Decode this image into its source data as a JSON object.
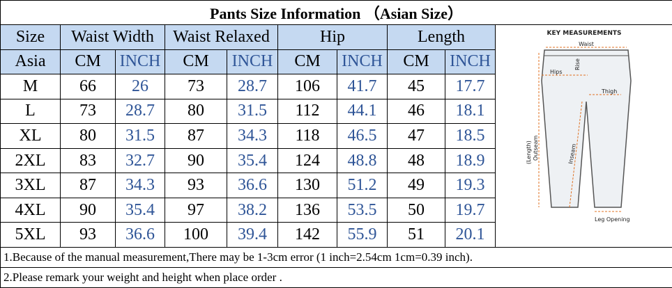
{
  "title": "Pants Size Information （Asian Size）",
  "header": {
    "size": "Size",
    "groups": [
      "Waist Width",
      "Waist Relaxed",
      "Hip",
      "Length"
    ],
    "region": "Asia",
    "cm": "CM",
    "inch": "INCH"
  },
  "table": {
    "rows": [
      [
        "M",
        66,
        26,
        73,
        28.7,
        106,
        41.7,
        45,
        17.7
      ],
      [
        "L",
        73,
        28.7,
        80,
        31.5,
        112,
        44.1,
        46,
        18.1
      ],
      [
        "XL",
        80,
        31.5,
        87,
        34.3,
        118,
        46.5,
        47,
        18.5
      ],
      [
        "2XL",
        83,
        32.7,
        90,
        35.4,
        124,
        48.8,
        48,
        18.9
      ],
      [
        "3XL",
        87,
        34.3,
        93,
        36.6,
        130,
        51.2,
        49,
        19.3
      ],
      [
        "4XL",
        90,
        35.4,
        97,
        38.2,
        136,
        53.5,
        50,
        19.7
      ],
      [
        "5XL",
        93,
        36.6,
        100,
        39.4,
        142,
        55.9,
        51,
        20.1
      ]
    ]
  },
  "notes": [
    "1.Because of the manual measurement,There may be 1-3cm error (1 inch=2.54cm 1cm=0.39 inch).",
    "2.Please remark your weight and height when place order ."
  ],
  "diagram": {
    "title": "KEY MEASUREMENTS",
    "waist": "Waist",
    "rise": "Rise",
    "hips": "Hips",
    "thigh": "Thigh",
    "length": "(Length)",
    "outseam": "Outseam",
    "inseam": "Inseam",
    "leg_opening": "Leg Opening"
  }
}
